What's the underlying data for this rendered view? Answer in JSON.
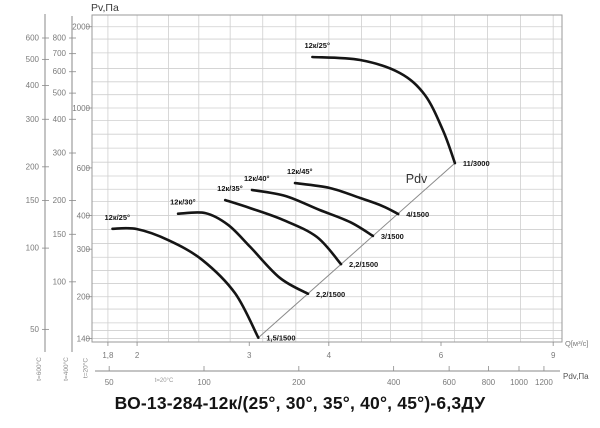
{
  "chart_data": {
    "type": "line",
    "title": "ВО-13-284-12к/(25°, 30°, 35°, 40°, 45°)-6,3ДУ",
    "colors": {
      "curve": "#151515",
      "grid": "#cfcfcf",
      "axis": "#8a8a8a",
      "tick_text": "#7a7a7a",
      "border": "#9a9a9a"
    },
    "x_axis": {
      "label": "Q[м³/с]",
      "scale": "log",
      "range": [
        1.69,
        9.3
      ],
      "ticks": [
        {
          "v": 1.8,
          "label": "1,8"
        },
        {
          "v": 2,
          "label": "2"
        },
        {
          "v": 3,
          "label": "3"
        },
        {
          "v": 4,
          "label": "4"
        },
        {
          "v": 6,
          "label": "6"
        },
        {
          "v": 9,
          "label": "9"
        }
      ],
      "gridlines": [
        1.8,
        2,
        2.24,
        2.5,
        2.8,
        3.15,
        3.55,
        4,
        4.5,
        5,
        5.6,
        6.3,
        7.1,
        8,
        9
      ]
    },
    "y_axis": {
      "label": "Pv,Па",
      "scale": "log",
      "range": [
        136,
        2210
      ],
      "temperature_note": "t=20°C",
      "ticks": [
        {
          "v": 2000,
          "label": "2000"
        },
        {
          "v": 1000,
          "label": "1000"
        },
        {
          "v": 600,
          "label": "600"
        },
        {
          "v": 400,
          "label": "400"
        },
        {
          "v": 300,
          "label": "300"
        },
        {
          "v": 200,
          "label": "200"
        },
        {
          "v": 140,
          "label": "140"
        }
      ],
      "gridlines": [
        140,
        150,
        160,
        180,
        200,
        224,
        250,
        280,
        315,
        355,
        400,
        450,
        500,
        560,
        630,
        710,
        800,
        900,
        1000,
        1120,
        1250,
        1400,
        1600,
        1800,
        2000
      ]
    },
    "aux_y_axes": [
      {
        "label": "t=600°C",
        "ticks": [
          {
            "v": 600,
            "label": "600"
          },
          {
            "v": 500,
            "label": "500"
          },
          {
            "v": 400,
            "label": "400"
          },
          {
            "v": 300,
            "label": "300"
          },
          {
            "v": 200,
            "label": "200"
          },
          {
            "v": 150,
            "label": "150"
          },
          {
            "v": 100,
            "label": "100"
          },
          {
            "v": 50,
            "label": "50"
          }
        ]
      },
      {
        "label": "t=400°C",
        "ticks": [
          {
            "v": 800,
            "label": "800"
          },
          {
            "v": 700,
            "label": "700"
          },
          {
            "v": 600,
            "label": "600"
          },
          {
            "v": 500,
            "label": "500"
          },
          {
            "v": 400,
            "label": "400"
          },
          {
            "v": 300,
            "label": "300"
          },
          {
            "v": 200,
            "label": "200"
          },
          {
            "v": 150,
            "label": "150"
          },
          {
            "v": 100,
            "label": "100"
          }
        ]
      }
    ],
    "pdv_axis": {
      "label": "Pdv,Па",
      "temperature_note": "t=20°C",
      "ticks": [
        {
          "v": 50,
          "label": "50"
        },
        {
          "v": 100,
          "label": "100"
        },
        {
          "v": 200,
          "label": "200"
        },
        {
          "v": 400,
          "label": "400"
        },
        {
          "v": 600,
          "label": "600"
        },
        {
          "v": 800,
          "label": "800"
        },
        {
          "v": 1000,
          "label": "1000"
        },
        {
          "v": 1200,
          "label": "1200"
        }
      ]
    },
    "pdv_line": {
      "label": "Pdv",
      "from": [
        3.1,
        141
      ],
      "to": [
        6.31,
        625
      ]
    },
    "series": [
      {
        "label": "12к/25°",
        "end_label": "1,5/1500",
        "points": [
          [
            1.83,
            357
          ],
          [
            2.0,
            356
          ],
          [
            2.24,
            324
          ],
          [
            2.53,
            274
          ],
          [
            2.85,
            206
          ],
          [
            3.1,
            141
          ]
        ]
      },
      {
        "label": "12к/30°",
        "end_label": "2,2/1500",
        "points": [
          [
            2.32,
            406
          ],
          [
            2.56,
            408
          ],
          [
            2.78,
            369
          ],
          [
            3.01,
            306
          ],
          [
            3.35,
            235
          ],
          [
            3.71,
            205
          ]
        ]
      },
      {
        "label": "12к/35°",
        "end_label": "2,2/1500",
        "points": [
          [
            2.75,
            456
          ],
          [
            3.01,
            426
          ],
          [
            3.39,
            385
          ],
          [
            3.83,
            333
          ],
          [
            4.18,
            264
          ]
        ]
      },
      {
        "label": "12к/40°",
        "end_label": "3/1500",
        "points": [
          [
            3.03,
            497
          ],
          [
            3.42,
            472
          ],
          [
            3.87,
            419
          ],
          [
            4.32,
            378
          ],
          [
            4.69,
            336
          ]
        ]
      },
      {
        "label": "12к/45°",
        "end_label": "4/1500",
        "points": [
          [
            3.54,
            527
          ],
          [
            4.02,
            505
          ],
          [
            4.48,
            464
          ],
          [
            4.85,
            434
          ],
          [
            5.14,
            405
          ]
        ]
      },
      {
        "label": "12к/25°",
        "end_label": "11/3000",
        "points": [
          [
            3.77,
            1545
          ],
          [
            4.48,
            1506
          ],
          [
            5.17,
            1348
          ],
          [
            5.66,
            1117
          ],
          [
            6.04,
            829
          ],
          [
            6.31,
            625
          ]
        ]
      }
    ]
  }
}
